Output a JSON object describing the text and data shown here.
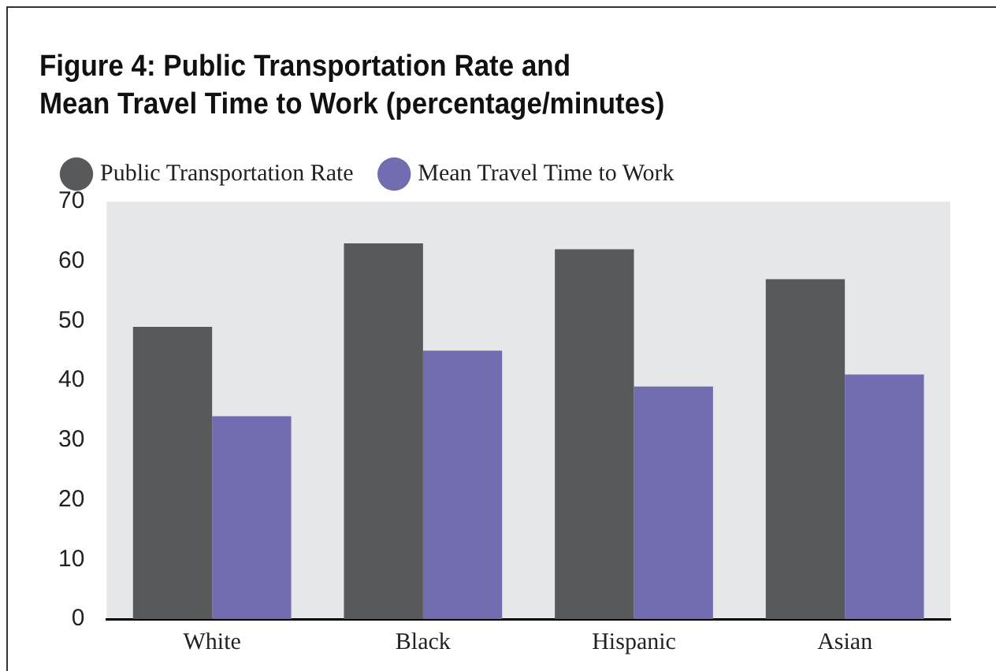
{
  "chart_data": {
    "type": "bar",
    "title": "Figure 4: Public Transportation Rate and\nMean Travel Time to Work (percentage/minutes)",
    "categories": [
      "White",
      "Black",
      "Hispanic",
      "Asian"
    ],
    "series": [
      {
        "name": "Public Transportation Rate",
        "color": "#58595b",
        "values": [
          49,
          63,
          62,
          57
        ]
      },
      {
        "name": "Mean Travel Time to Work",
        "color": "#716db0",
        "values": [
          34,
          45,
          39,
          41
        ]
      }
    ],
    "ylim": [
      0,
      70
    ],
    "yticks": [
      0,
      10,
      20,
      30,
      40,
      50,
      60,
      70
    ],
    "grid": false,
    "legend": "top left"
  }
}
